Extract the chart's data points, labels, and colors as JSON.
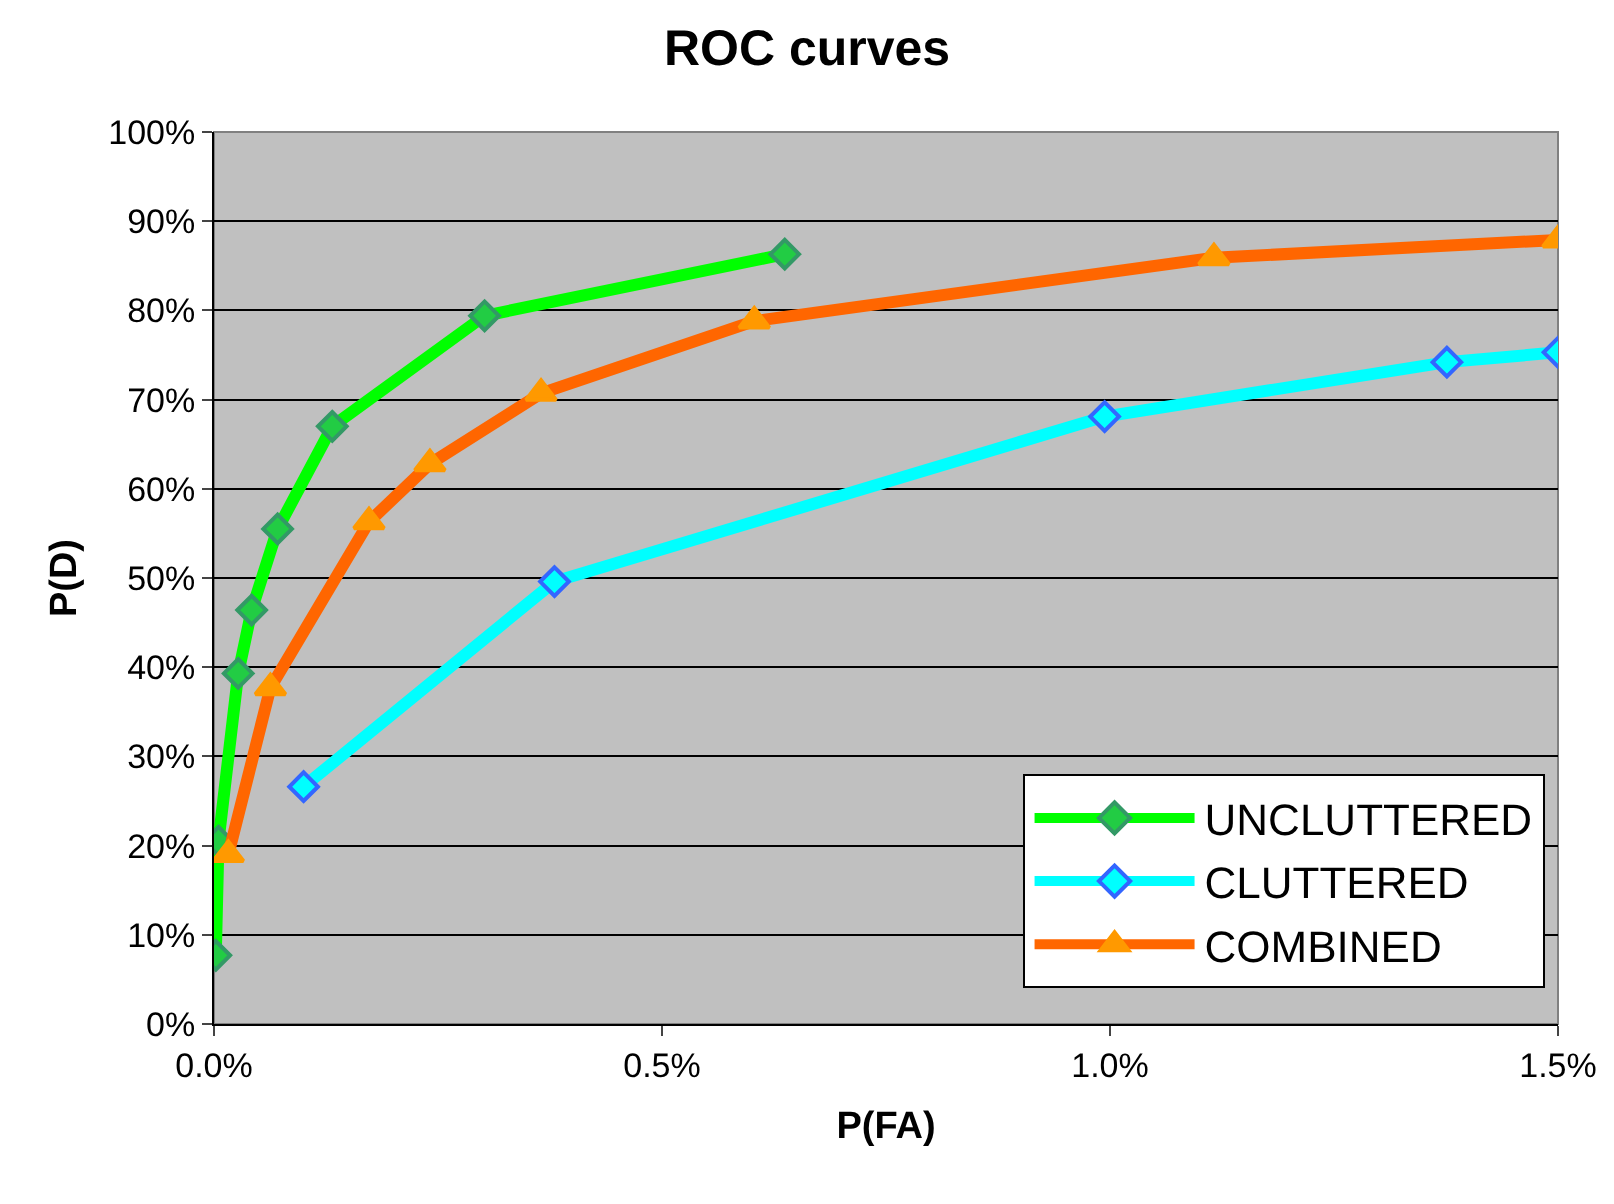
{
  "chart_data": {
    "type": "line",
    "title": "ROC curves",
    "xlabel": "P(FA)",
    "ylabel": "P(D)",
    "xlim": [
      0,
      1.5
    ],
    "xticks": [
      {
        "value": 0,
        "label": "0.0%"
      },
      {
        "value": 0.5,
        "label": "0.5%"
      },
      {
        "value": 1,
        "label": "1.0%"
      },
      {
        "value": 1.5,
        "label": "1.5%"
      }
    ],
    "ylim": [
      0,
      100
    ],
    "yticks": [
      {
        "value": 0,
        "label": "0%"
      },
      {
        "value": 10,
        "label": "10%"
      },
      {
        "value": 20,
        "label": "20%"
      },
      {
        "value": 30,
        "label": "30%"
      },
      {
        "value": 40,
        "label": "40%"
      },
      {
        "value": 50,
        "label": "50%"
      },
      {
        "value": 60,
        "label": "60%"
      },
      {
        "value": 70,
        "label": "70%"
      },
      {
        "value": 80,
        "label": "80%"
      },
      {
        "value": 90,
        "label": "90%"
      },
      {
        "value": 100,
        "label": "100%"
      }
    ],
    "grid": "y",
    "legend": "bottom right",
    "line_style": "solid",
    "series": [
      {
        "name": "UNCLUTTERED",
        "color": "#00ff00",
        "marker": "diamond",
        "x": [
          0.002,
          0.005,
          0.027,
          0.042,
          0.071,
          0.132,
          0.302,
          0.637
        ],
        "values": [
          7.7,
          20.5,
          39.3,
          46.4,
          55.5,
          67.0,
          79.4,
          86.3
        ]
      },
      {
        "name": "CLUTTERED",
        "color": "#00ffff",
        "marker": "diamond",
        "x": [
          0.1,
          0.38,
          0.994,
          1.376,
          1.5
        ],
        "values": [
          26.6,
          49.6,
          68.1,
          74.2,
          75.3
        ]
      },
      {
        "name": "COMBINED",
        "color": "#ff6600",
        "marker": "triangle",
        "x": [
          0.016,
          0.063,
          0.173,
          0.241,
          0.365,
          0.603,
          1.116,
          1.5
        ],
        "values": [
          19.0,
          37.7,
          56.3,
          62.8,
          70.7,
          78.8,
          85.9,
          87.9
        ]
      }
    ]
  }
}
